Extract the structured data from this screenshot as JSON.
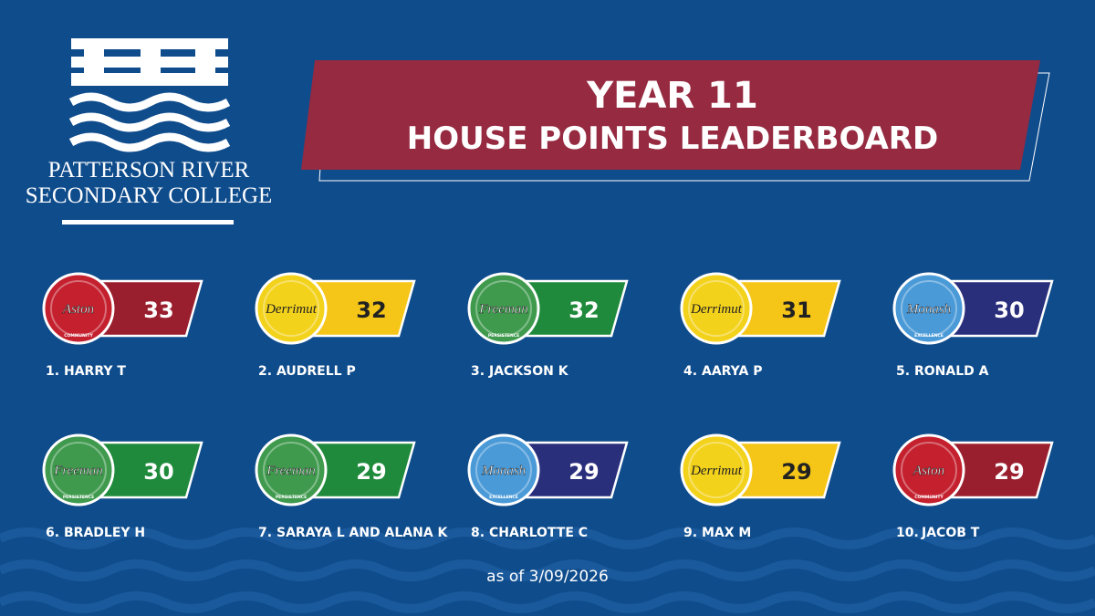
{
  "school": {
    "lines": [
      "PATTERSON RIVER",
      "SECONDARY COLLEGE"
    ]
  },
  "title": {
    "lines": [
      "YEAR 11",
      "HOUSE POINTS LEADERBOARD"
    ]
  },
  "houses": [
    {
      "name": "Aston",
      "motto": "COMMUNITY",
      "color": "#9a1f2e",
      "badge": "#c4202e"
    },
    {
      "name": "Derrimut",
      "color": "#f5c518",
      "badge": "#f3d21c"
    },
    {
      "name": "Freeman",
      "motto": "PERSISTENCE",
      "color": "#1f8a3c",
      "badge": "#3f9a4e"
    },
    {
      "name": "Monash",
      "motto": "EXCELLENCE",
      "color": "#2a2f7c",
      "badge": "#4a9ad8"
    }
  ],
  "entries": [
    {
      "rank": "1.",
      "name": "HARRY T",
      "house": "Aston",
      "points": 33
    },
    {
      "rank": "2.",
      "name": "AUDRELL P",
      "house": "Derrimut",
      "points": 32
    },
    {
      "rank": "3.",
      "name": "JACKSON K",
      "house": "Freeman",
      "points": 32
    },
    {
      "rank": "4.",
      "name": "AARYA P",
      "house": "Derrimut",
      "points": 31
    },
    {
      "rank": "5.",
      "name": "RONALD A",
      "house": "Monash",
      "points": 30
    },
    {
      "rank": "6.",
      "name": "BRADLEY H",
      "house": "Freeman",
      "points": 30
    },
    {
      "rank": "7.",
      "name": "SARAYA L AND ALANA K",
      "house": "Freeman",
      "points": 29
    },
    {
      "rank": "8.",
      "name": "CHARLOTTE C",
      "house": "Monash",
      "points": 29
    },
    {
      "rank": "9.",
      "name": "MAX M",
      "house": "Derrimut",
      "points": 29
    },
    {
      "rank": "10.",
      "name": "JACOB T",
      "house": "Aston",
      "points": 29
    }
  ],
  "footer": "as of 3/09/2026"
}
